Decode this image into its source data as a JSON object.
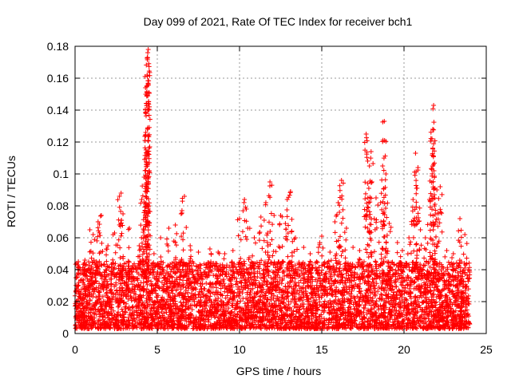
{
  "chart_data": {
    "type": "scatter",
    "title": "Day 099 of 2021, Rate Of TEC Index for receiver bch1",
    "xlabel": "GPS time / hours",
    "ylabel": "ROTI / TECUs",
    "xlim": [
      0,
      25
    ],
    "ylim": [
      0,
      0.18
    ],
    "x_ticks": [
      0,
      5,
      10,
      15,
      20,
      25
    ],
    "y_ticks": [
      0,
      0.02,
      0.04,
      0.06,
      0.08,
      0.1,
      0.12,
      0.14,
      0.16,
      0.18
    ],
    "x_tick_labels": [
      "0",
      "5",
      "10",
      "15",
      "20",
      "25"
    ],
    "y_tick_labels": [
      "0",
      "0.02",
      "0.04",
      "0.06",
      "0.08",
      "0.1",
      "0.12",
      "0.14",
      "0.16",
      "0.18"
    ],
    "grid": true,
    "marker": "+",
    "color": "#ff0000",
    "series": [
      {
        "points": [
          [
            0.2,
            0.045
          ],
          [
            0.6,
            0.046
          ],
          [
            0.9,
            0.065
          ],
          [
            1.1,
            0.062
          ],
          [
            1.4,
            0.07
          ],
          [
            1.6,
            0.074
          ],
          [
            2.0,
            0.055
          ],
          [
            2.4,
            0.063
          ],
          [
            2.7,
            0.086
          ],
          [
            2.8,
            0.088
          ],
          [
            3.3,
            0.066
          ],
          [
            3.9,
            0.055
          ],
          [
            4.05,
            0.084
          ],
          [
            4.2,
            0.098
          ],
          [
            4.25,
            0.121
          ],
          [
            4.3,
            0.126
          ],
          [
            4.35,
            0.144
          ],
          [
            4.38,
            0.162
          ],
          [
            4.4,
            0.173
          ],
          [
            4.42,
            0.176
          ],
          [
            4.45,
            0.178
          ],
          [
            4.8,
            0.05
          ],
          [
            5.2,
            0.06
          ],
          [
            5.7,
            0.066
          ],
          [
            6.1,
            0.068
          ],
          [
            6.5,
            0.077
          ],
          [
            6.65,
            0.086
          ],
          [
            7.0,
            0.055
          ],
          [
            7.5,
            0.051
          ],
          [
            8.2,
            0.053
          ],
          [
            8.7,
            0.051
          ],
          [
            9.1,
            0.05
          ],
          [
            9.6,
            0.052
          ],
          [
            10.0,
            0.072
          ],
          [
            10.3,
            0.084
          ],
          [
            10.5,
            0.066
          ],
          [
            10.9,
            0.06
          ],
          [
            11.3,
            0.073
          ],
          [
            11.6,
            0.082
          ],
          [
            11.85,
            0.095
          ],
          [
            12.1,
            0.074
          ],
          [
            12.5,
            0.074
          ],
          [
            12.9,
            0.084
          ],
          [
            13.1,
            0.089
          ],
          [
            13.4,
            0.06
          ],
          [
            13.9,
            0.054
          ],
          [
            14.3,
            0.05
          ],
          [
            14.8,
            0.054
          ],
          [
            15.0,
            0.061
          ],
          [
            15.5,
            0.051
          ],
          [
            15.8,
            0.07
          ],
          [
            16.0,
            0.082
          ],
          [
            16.2,
            0.096
          ],
          [
            16.5,
            0.066
          ],
          [
            16.9,
            0.054
          ],
          [
            17.3,
            0.052
          ],
          [
            17.7,
            0.125
          ],
          [
            17.8,
            0.094
          ],
          [
            17.9,
            0.105
          ],
          [
            18.0,
            0.114
          ],
          [
            18.3,
            0.085
          ],
          [
            18.6,
            0.07
          ],
          [
            18.7,
            0.105
          ],
          [
            18.8,
            0.133
          ],
          [
            18.9,
            0.1
          ],
          [
            19.1,
            0.069
          ],
          [
            19.6,
            0.057
          ],
          [
            19.9,
            0.052
          ],
          [
            20.3,
            0.06
          ],
          [
            20.55,
            0.084
          ],
          [
            20.7,
            0.113
          ],
          [
            20.85,
            0.104
          ],
          [
            21.0,
            0.065
          ],
          [
            21.3,
            0.06
          ],
          [
            21.55,
            0.084
          ],
          [
            21.7,
            0.122
          ],
          [
            21.75,
            0.128
          ],
          [
            21.8,
            0.143
          ],
          [
            22.0,
            0.09
          ],
          [
            22.2,
            0.092
          ],
          [
            22.6,
            0.052
          ],
          [
            23.0,
            0.05
          ],
          [
            23.4,
            0.072
          ],
          [
            23.7,
            0.062
          ],
          [
            23.9,
            0.04
          ]
        ]
      }
    ],
    "dense_band": {
      "x_range": [
        0,
        24
      ],
      "y_range": [
        0.003,
        0.045
      ],
      "note_free": true
    }
  }
}
